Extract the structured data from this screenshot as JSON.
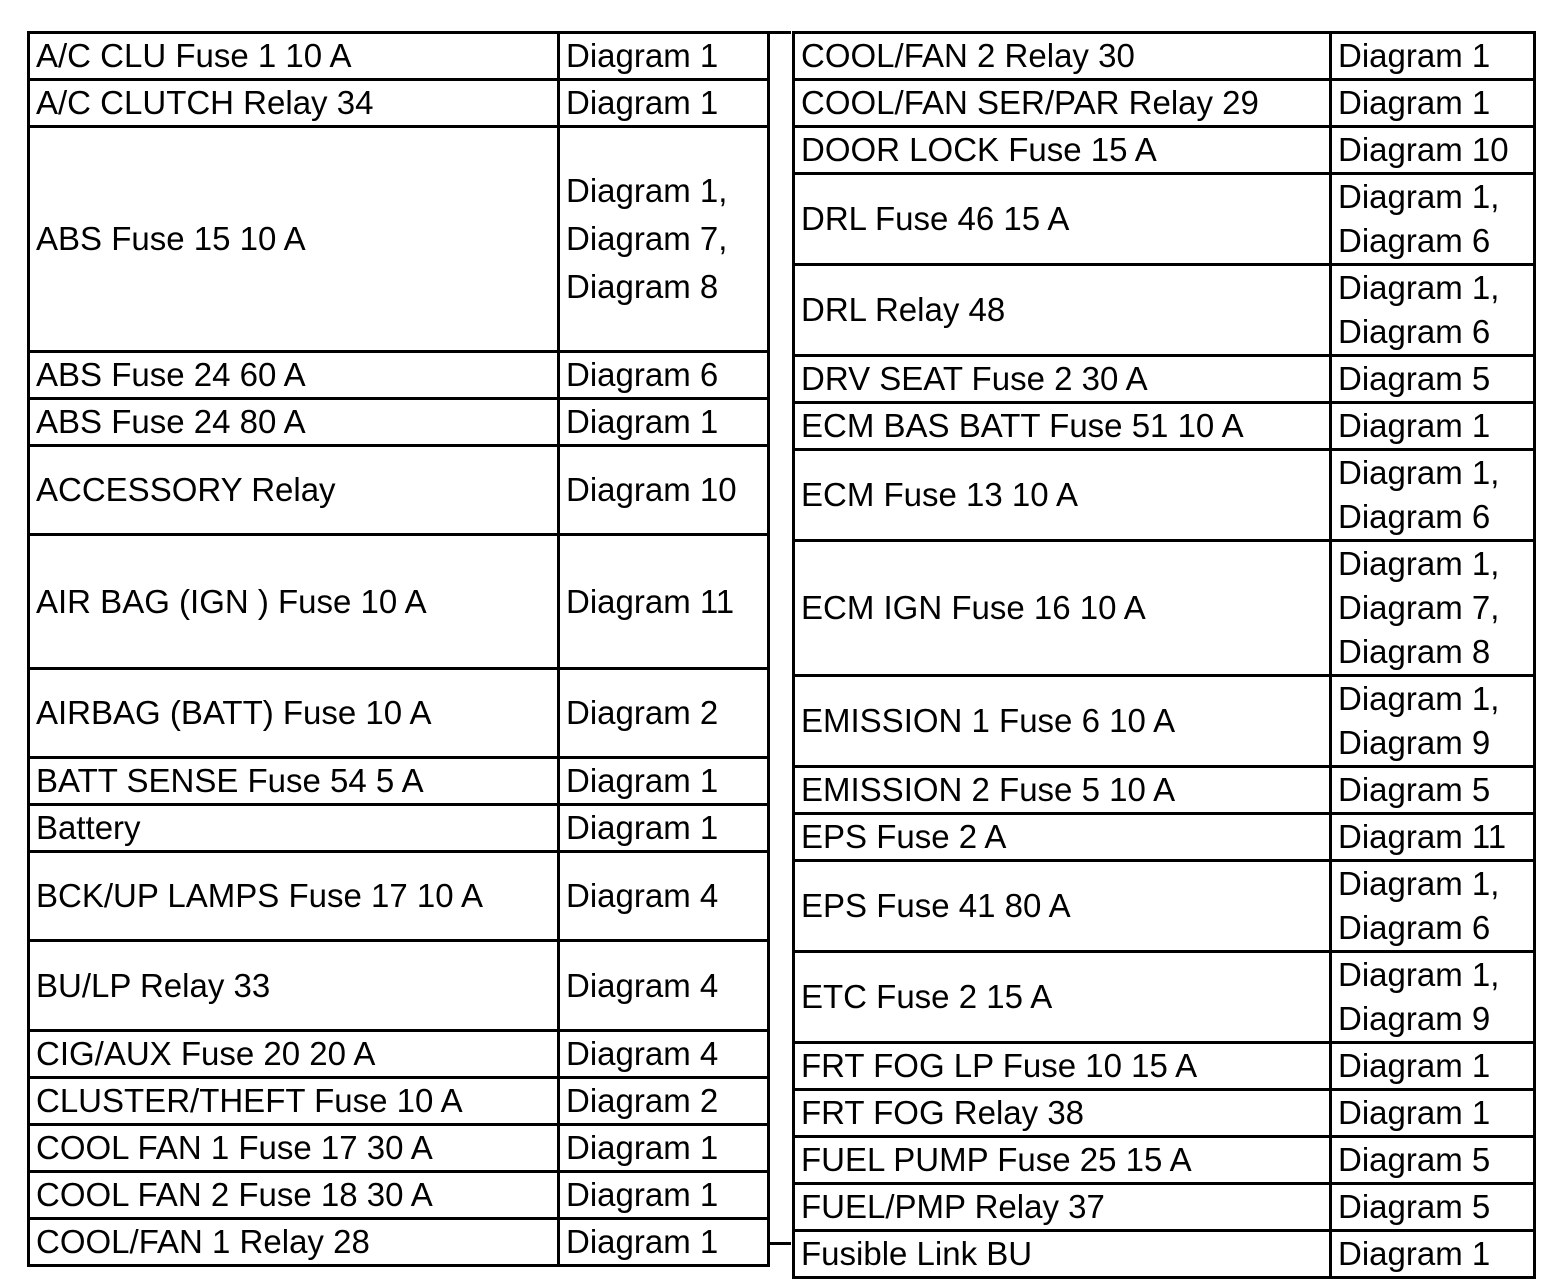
{
  "left_rows": [
    {
      "name": "A/C CLU Fuse 1 10 A",
      "diagram": "Diagram 1"
    },
    {
      "name": "A/C CLUTCH Relay 34",
      "diagram": "Diagram 1"
    },
    {
      "name": "ABS Fuse 15 10 A",
      "diagram": "Diagram 1,\nDiagram 7,\nDiagram 8"
    },
    {
      "name": "ABS Fuse 24 60 A",
      "diagram": "Diagram 6"
    },
    {
      "name": "ABS Fuse 24 80 A",
      "diagram": "Diagram 1"
    },
    {
      "name": "ACCESSORY Relay",
      "diagram": "Diagram 10"
    },
    {
      "name": "AIR BAG (IGN ) Fuse 10 A",
      "diagram": "Diagram 11"
    },
    {
      "name": "AIRBAG (BATT) Fuse 10 A",
      "diagram": "Diagram 2"
    },
    {
      "name": "BATT SENSE Fuse 54 5 A",
      "diagram": "Diagram 1"
    },
    {
      "name": "Battery",
      "diagram": "Diagram 1"
    },
    {
      "name": "BCK/UP LAMPS Fuse 17 10 A",
      "diagram": "Diagram 4"
    },
    {
      "name": "BU/LP Relay 33",
      "diagram": "Diagram 4"
    },
    {
      "name": "CIG/AUX Fuse 20 20 A",
      "diagram": "Diagram 4"
    },
    {
      "name": "CLUSTER/THEFT Fuse 10 A",
      "diagram": "Diagram 2"
    },
    {
      "name": "COOL FAN 1 Fuse 17 30 A",
      "diagram": "Diagram 1"
    },
    {
      "name": "COOL FAN 2 Fuse 18 30 A",
      "diagram": "Diagram 1"
    },
    {
      "name": "COOL/FAN 1 Relay 28",
      "diagram": "Diagram 1"
    }
  ],
  "right_rows": [
    {
      "name": "COOL/FAN 2 Relay 30",
      "diagram": "Diagram 1"
    },
    {
      "name": "COOL/FAN SER/PAR Relay 29",
      "diagram": "Diagram 1"
    },
    {
      "name": "DOOR LOCK Fuse 15 A",
      "diagram": "Diagram 10"
    },
    {
      "name": "DRL Fuse 46 15 A",
      "diagram": "Diagram 1,\nDiagram 6"
    },
    {
      "name": "DRL Relay 48",
      "diagram": "Diagram 1,\nDiagram 6"
    },
    {
      "name": "DRV SEAT Fuse 2 30 A",
      "diagram": "Diagram 5"
    },
    {
      "name": "ECM BAS BATT Fuse 51 10 A",
      "diagram": "Diagram 1"
    },
    {
      "name": "ECM Fuse 13 10 A",
      "diagram": "Diagram 1,\nDiagram 6"
    },
    {
      "name": "ECM IGN Fuse 16 10 A",
      "diagram": "Diagram 1,\nDiagram 7,\nDiagram 8"
    },
    {
      "name": "EMISSION 1 Fuse 6 10 A",
      "diagram": "Diagram 1,\nDiagram 9"
    },
    {
      "name": "EMISSION 2 Fuse 5 10 A",
      "diagram": "Diagram 5"
    },
    {
      "name": "EPS Fuse 2 A",
      "diagram": "Diagram 11"
    },
    {
      "name": "EPS Fuse 41 80 A",
      "diagram": "Diagram 1,\nDiagram 6"
    },
    {
      "name": "ETC Fuse 2 15 A",
      "diagram": "Diagram 1,\nDiagram 9"
    },
    {
      "name": "FRT FOG LP Fuse 10 15 A",
      "diagram": "Diagram 1"
    },
    {
      "name": "FRT FOG Relay 38",
      "diagram": "Diagram 1"
    },
    {
      "name": "FUEL PUMP Fuse 25 15 A",
      "diagram": "Diagram 5"
    },
    {
      "name": "FUEL/PMP Relay 37",
      "diagram": "Diagram 5"
    },
    {
      "name": "Fusible Link BU",
      "diagram": "Diagram 1"
    }
  ]
}
